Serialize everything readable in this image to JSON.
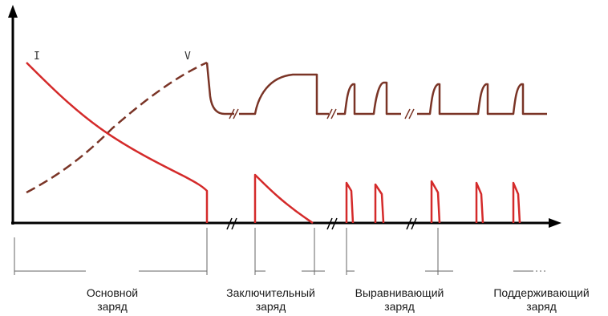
{
  "colors": {
    "axis": "#000000",
    "voltage": "#7a3426",
    "current": "#d42a2a",
    "divider": "#666666"
  },
  "curve_letters": {
    "current": "I",
    "voltage": "V"
  },
  "phases": [
    {
      "line1": "Основной",
      "line2": "заряд"
    },
    {
      "line1": "Заключительный",
      "line2": "заряд"
    },
    {
      "line1": "Выравнивающий",
      "line2": "заряд"
    },
    {
      "line1": "Поддерживающий",
      "line2": "заряд"
    }
  ]
}
